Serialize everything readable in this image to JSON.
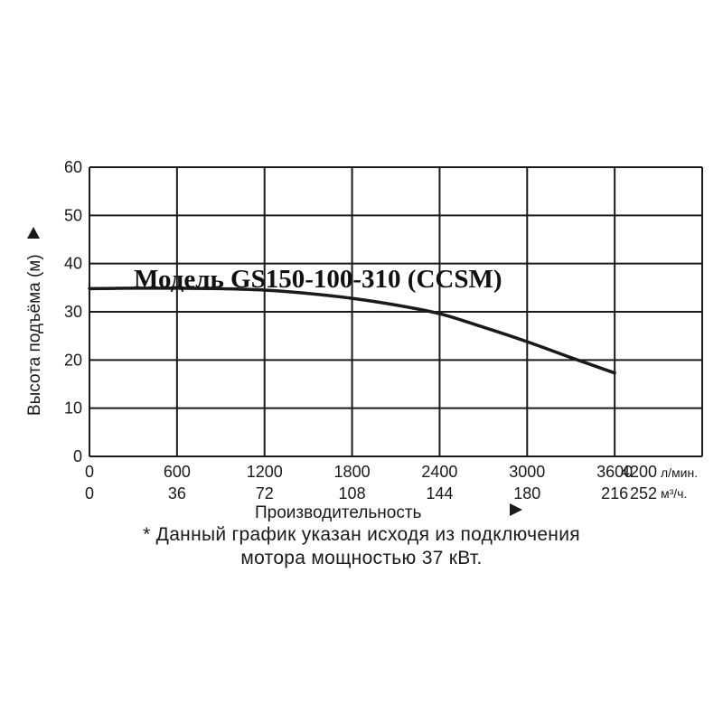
{
  "chart_data": {
    "type": "line",
    "title": "Модель GS150-100-310 (CCSM)",
    "ylabel": "Высота подъёма (м)",
    "xlabel": "Производительность",
    "ylim": [
      0,
      60
    ],
    "yticks": [
      0,
      10,
      20,
      30,
      40,
      50,
      60
    ],
    "xlim": [
      0,
      4200
    ],
    "xticks_lmin": [
      "0",
      "600",
      "1200",
      "1800",
      "2400",
      "3000",
      "3600",
      "4200"
    ],
    "xticks_m3h": [
      "0",
      "36",
      "72",
      "108",
      "144",
      "180",
      "216",
      "252"
    ],
    "x_unit_primary": "л/мин.",
    "x_unit_secondary": "м³/ч.",
    "grid": true,
    "series": [
      {
        "x": [
          0,
          300,
          600,
          900,
          1200,
          1500,
          1800,
          2100,
          2400,
          2700,
          3000,
          3300,
          3600
        ],
        "y": [
          34.8,
          34.9,
          34.9,
          34.8,
          34.5,
          33.8,
          32.8,
          31.4,
          29.6,
          26.8,
          23.8,
          20.5,
          17.3
        ]
      }
    ]
  },
  "footnote": {
    "line1": "* Данный график указан исходя из подключения",
    "line2": "мотора мощностью 37 кВт."
  }
}
